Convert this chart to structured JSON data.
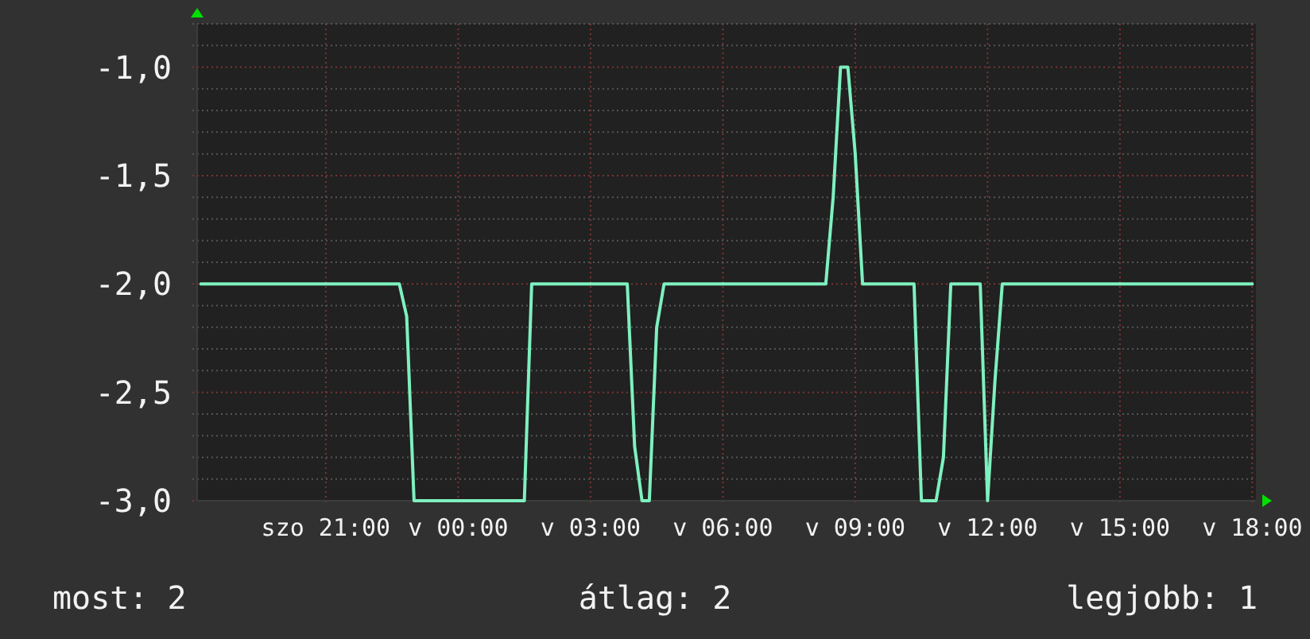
{
  "chart_data": {
    "type": "line",
    "color": "#7ef0bf",
    "categories": [
      null,
      null,
      null,
      null,
      null,
      null,
      null,
      null,
      null,
      null,
      null,
      null,
      null,
      null,
      null,
      null,
      null,
      "szo 21:00",
      null,
      null,
      null,
      null,
      null,
      null,
      null,
      null,
      null,
      null,
      null,
      null,
      null,
      null,
      null,
      null,
      null,
      "v 00:00",
      null,
      null,
      null,
      null,
      null,
      null,
      null,
      null,
      null,
      null,
      null,
      null,
      null,
      null,
      null,
      null,
      null,
      "v 03:00",
      null,
      null,
      null,
      null,
      null,
      null,
      null,
      null,
      null,
      null,
      null,
      null,
      null,
      null,
      null,
      null,
      null,
      "v 06:00",
      null,
      null,
      null,
      null,
      null,
      null,
      null,
      null,
      null,
      null,
      null,
      null,
      null,
      null,
      null,
      null,
      null,
      "v 09:00",
      null,
      null,
      null,
      null,
      null,
      null,
      null,
      null,
      null,
      null,
      null,
      null,
      null,
      null,
      null,
      null,
      null,
      "v 12:00",
      null,
      null,
      null,
      null,
      null,
      null,
      null,
      null,
      null,
      null,
      null,
      null,
      null,
      null,
      null,
      null,
      null,
      "v 15:00",
      null,
      null,
      null,
      null,
      null,
      null,
      null,
      null,
      null,
      null,
      null,
      null,
      null,
      null,
      null,
      null,
      null,
      "v 18:00"
    ],
    "values": [
      -2,
      -2,
      -2,
      -2,
      -2,
      -2,
      -2,
      -2,
      -2,
      -2,
      -2,
      -2,
      -2,
      -2,
      -2,
      -2,
      -2,
      -2,
      -2,
      -2,
      -2,
      -2,
      -2,
      -2,
      -2,
      -2,
      -2,
      -2,
      -2.15,
      -3,
      -3,
      -3,
      -3,
      -3,
      -3,
      -3,
      -3,
      -3,
      -3,
      -3,
      -3,
      -3,
      -3,
      -3,
      -3,
      -2,
      -2,
      -2,
      -2,
      -2,
      -2,
      -2,
      -2,
      -2,
      -2,
      -2,
      -2,
      -2,
      -2,
      -2.75,
      -3,
      -3,
      -2.2,
      -2,
      -2,
      -2,
      -2,
      -2,
      -2,
      -2,
      -2,
      -2,
      -2,
      -2,
      -2,
      -2,
      -2,
      -2,
      -2,
      -2,
      -2,
      -2,
      -2,
      -2,
      -2,
      -2,
      -1.6,
      -1,
      -1,
      -1.4,
      -2,
      -2,
      -2,
      -2,
      -2,
      -2,
      -2,
      -2,
      -3,
      -3,
      -3,
      -2.8,
      -2,
      -2,
      -2,
      -2,
      -2,
      -3,
      -2.45,
      -2,
      -2,
      -2,
      -2,
      -2,
      -2,
      -2,
      -2,
      -2,
      -2,
      -2,
      -2,
      -2,
      -2,
      -2,
      -2,
      -2,
      -2,
      -2,
      -2,
      -2,
      -2,
      -2,
      -2,
      -2,
      -2,
      -2,
      -2,
      -2,
      -2,
      -2,
      -2,
      -2,
      -2,
      -2
    ],
    "ylim": [
      -3,
      -0.8
    ],
    "yticks": [
      {
        "value": -3,
        "label": "-3,0"
      },
      {
        "value": -2.9,
        "label": null
      },
      {
        "value": -2.8,
        "label": null
      },
      {
        "value": -2.7,
        "label": null
      },
      {
        "value": -2.6,
        "label": null
      },
      {
        "value": -2.5,
        "label": "-2,5"
      },
      {
        "value": -2.4,
        "label": null
      },
      {
        "value": -2.3,
        "label": null
      },
      {
        "value": -2.2,
        "label": null
      },
      {
        "value": -2.1,
        "label": null
      },
      {
        "value": -2,
        "label": "-2,0"
      },
      {
        "value": -1.9,
        "label": null
      },
      {
        "value": -1.8,
        "label": null
      },
      {
        "value": -1.7,
        "label": null
      },
      {
        "value": -1.6,
        "label": null
      },
      {
        "value": -1.5,
        "label": "-1,5"
      },
      {
        "value": -1.4,
        "label": null
      },
      {
        "value": -1.3,
        "label": null
      },
      {
        "value": -1.2,
        "label": null
      },
      {
        "value": -1.1,
        "label": null
      },
      {
        "value": -1,
        "label": "-1,0"
      },
      {
        "value": -0.9,
        "label": null
      },
      {
        "value": -0.8,
        "label": null
      }
    ],
    "grid": true,
    "annotations": [
      "most: 2",
      "átlag: 2",
      "legjobb: 1"
    ]
  }
}
